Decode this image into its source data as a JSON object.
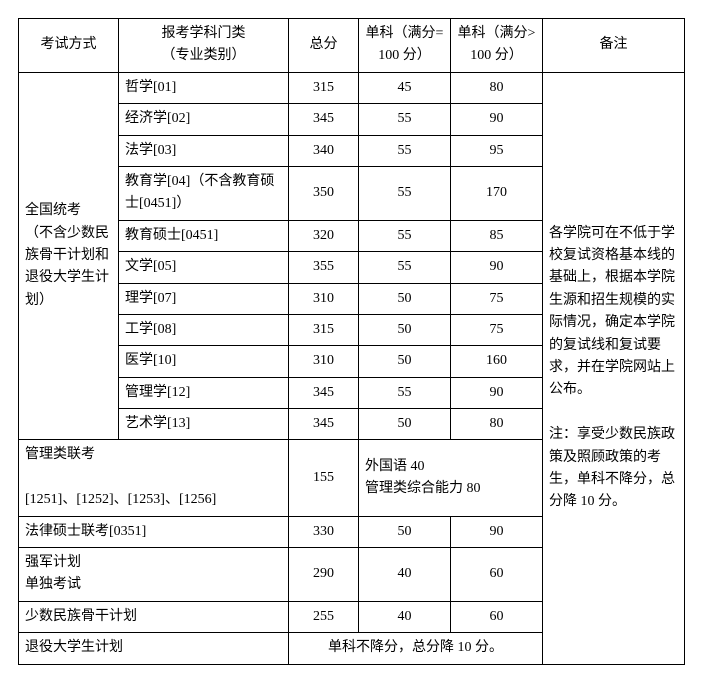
{
  "header": {
    "examMethod": "考试方式",
    "category": "报考学科门类\n（专业类别）",
    "total": "总分",
    "single100": "单科（满分=100 分）",
    "singleGt100": "单科（满分>100 分）",
    "remark": "备注"
  },
  "groupA": {
    "label": "全国统考\n（不含少数民族骨干计划和退役大学生计划）"
  },
  "rows": [
    {
      "cat": "哲学[01]",
      "total": "315",
      "s100": "45",
      "sgt100": "80"
    },
    {
      "cat": "经济学[02]",
      "total": "345",
      "s100": "55",
      "sgt100": "90"
    },
    {
      "cat": "法学[03]",
      "total": "340",
      "s100": "55",
      "sgt100": "95"
    },
    {
      "cat": "教育学[04]（不含教育硕士[0451]）",
      "total": "350",
      "s100": "55",
      "sgt100": "170"
    },
    {
      "cat": "教育硕士[0451]",
      "total": "320",
      "s100": "55",
      "sgt100": "85"
    },
    {
      "cat": "文学[05]",
      "total": "355",
      "s100": "55",
      "sgt100": "90"
    },
    {
      "cat": "理学[07]",
      "total": "310",
      "s100": "50",
      "sgt100": "75"
    },
    {
      "cat": "工学[08]",
      "total": "315",
      "s100": "50",
      "sgt100": "75"
    },
    {
      "cat": "医学[10]",
      "total": "310",
      "s100": "50",
      "sgt100": "160"
    },
    {
      "cat": "管理学[12]",
      "total": "345",
      "s100": "55",
      "sgt100": "90"
    },
    {
      "cat": "艺术学[13]",
      "total": "345",
      "s100": "50",
      "sgt100": "80"
    }
  ],
  "mgmtExam": {
    "line1": "管理类联考",
    "line2": "[1251]、[1252]、[1253]、[1256]",
    "total": "155",
    "detailLine1": "外国语 40",
    "detailLine2": "管理类综合能力 80"
  },
  "lawExam": {
    "label": "法律硕士联考[0351]",
    "total": "330",
    "s100": "50",
    "sgt100": "90"
  },
  "strongArmy": {
    "line1": "强军计划",
    "line2": "单独考试",
    "total": "290",
    "s100": "40",
    "sgt100": "60"
  },
  "minority": {
    "label": "少数民族骨干计划",
    "total": "255",
    "s100": "40",
    "sgt100": "60"
  },
  "retired": {
    "label": "退役大学生计划",
    "note": "单科不降分，总分降 10 分。"
  },
  "remarkText": "各学院可在不低于学校复试资格基本线的基础上，根据本学院生源和招生规模的实际情况，确定本学院的复试线和复试要求，并在学院网站上公布。\n\n注：享受少数民族政策及照顾政策的考生，单科不降分，总分降 10 分。"
}
